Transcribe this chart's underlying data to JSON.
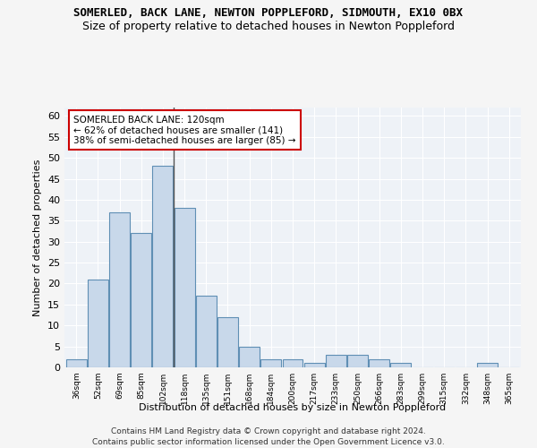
{
  "title": "SOMERLED, BACK LANE, NEWTON POPPLEFORD, SIDMOUTH, EX10 0BX",
  "subtitle": "Size of property relative to detached houses in Newton Poppleford",
  "xlabel": "Distribution of detached houses by size in Newton Poppleford",
  "ylabel": "Number of detached properties",
  "categories": [
    "36sqm",
    "52sqm",
    "69sqm",
    "85sqm",
    "102sqm",
    "118sqm",
    "135sqm",
    "151sqm",
    "168sqm",
    "184sqm",
    "200sqm",
    "217sqm",
    "233sqm",
    "250sqm",
    "266sqm",
    "283sqm",
    "299sqm",
    "315sqm",
    "332sqm",
    "348sqm",
    "365sqm"
  ],
  "values": [
    2,
    21,
    37,
    32,
    48,
    38,
    17,
    12,
    5,
    2,
    2,
    1,
    3,
    3,
    2,
    1,
    0,
    0,
    0,
    1,
    0
  ],
  "bar_color": "#c8d8ea",
  "bar_edge_color": "#5f8fb4",
  "vline_color": "#555555",
  "annotation_box_color": "#ffffff",
  "annotation_box_edge_color": "#cc0000",
  "annotation_text_line1": "SOMERLED BACK LANE: 120sqm",
  "annotation_text_line2": "← 62% of detached houses are smaller (141)",
  "annotation_text_line3": "38% of semi-detached houses are larger (85) →",
  "ylim": [
    0,
    62
  ],
  "yticks": [
    0,
    5,
    10,
    15,
    20,
    25,
    30,
    35,
    40,
    45,
    50,
    55,
    60
  ],
  "background_color": "#eef2f7",
  "grid_color": "#ffffff",
  "footer_line1": "Contains HM Land Registry data © Crown copyright and database right 2024.",
  "footer_line2": "Contains public sector information licensed under the Open Government Licence v3.0.",
  "fig_facecolor": "#f5f5f5"
}
